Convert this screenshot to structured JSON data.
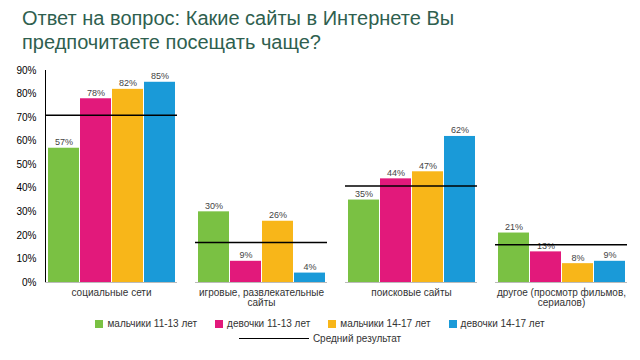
{
  "chart_data": {
    "type": "bar",
    "title": "Ответ на вопрос: Какие сайты в Интернете Вы предпочитаете посещать чаще?",
    "categories": [
      "социальные сети",
      "игровые, развлекательные сайты",
      "поисковые сайты",
      "другое (просмотр фильмов, сериалов)"
    ],
    "series": [
      {
        "name": "мальчики 11-13 лет",
        "color": "#7ac143",
        "values": [
          57,
          30,
          35,
          21
        ],
        "value_labels": [
          "57%",
          "30%",
          "35%",
          "21%"
        ]
      },
      {
        "name": "девочки 11-13 лет",
        "color": "#e2197b",
        "values": [
          78,
          9,
          44,
          13
        ],
        "value_labels": [
          "78%",
          "9%",
          "44%",
          "13%"
        ]
      },
      {
        "name": "мальчики 14-17 лет",
        "color": "#f8b619",
        "values": [
          82,
          26,
          47,
          8
        ],
        "value_labels": [
          "82%",
          "26%",
          "47%",
          "8%"
        ]
      },
      {
        "name": "девочки 14-17 лет",
        "color": "#1a9ad8",
        "values": [
          85,
          4,
          62,
          9
        ],
        "value_labels": [
          "85%",
          "4%",
          "62%",
          "9%"
        ]
      },
      {
        "name": "Средний результат",
        "type": "line",
        "color": "#000000",
        "values": [
          71,
          17,
          41,
          16
        ],
        "data_labels": false
      }
    ],
    "ylim": [
      0,
      90
    ],
    "yticks": [
      {
        "value": 0,
        "label": "0%"
      },
      {
        "value": 10,
        "label": "10%"
      },
      {
        "value": 20,
        "label": "20%"
      },
      {
        "value": 30,
        "label": "30%"
      },
      {
        "value": 40,
        "label": "40%"
      },
      {
        "value": 50,
        "label": "50%"
      },
      {
        "value": 60,
        "label": "60%"
      },
      {
        "value": 70,
        "label": "70%"
      },
      {
        "value": 80,
        "label": "80%"
      },
      {
        "value": 90,
        "label": "90%"
      }
    ],
    "grid": false,
    "legend": "bottom",
    "data_labels": true
  }
}
